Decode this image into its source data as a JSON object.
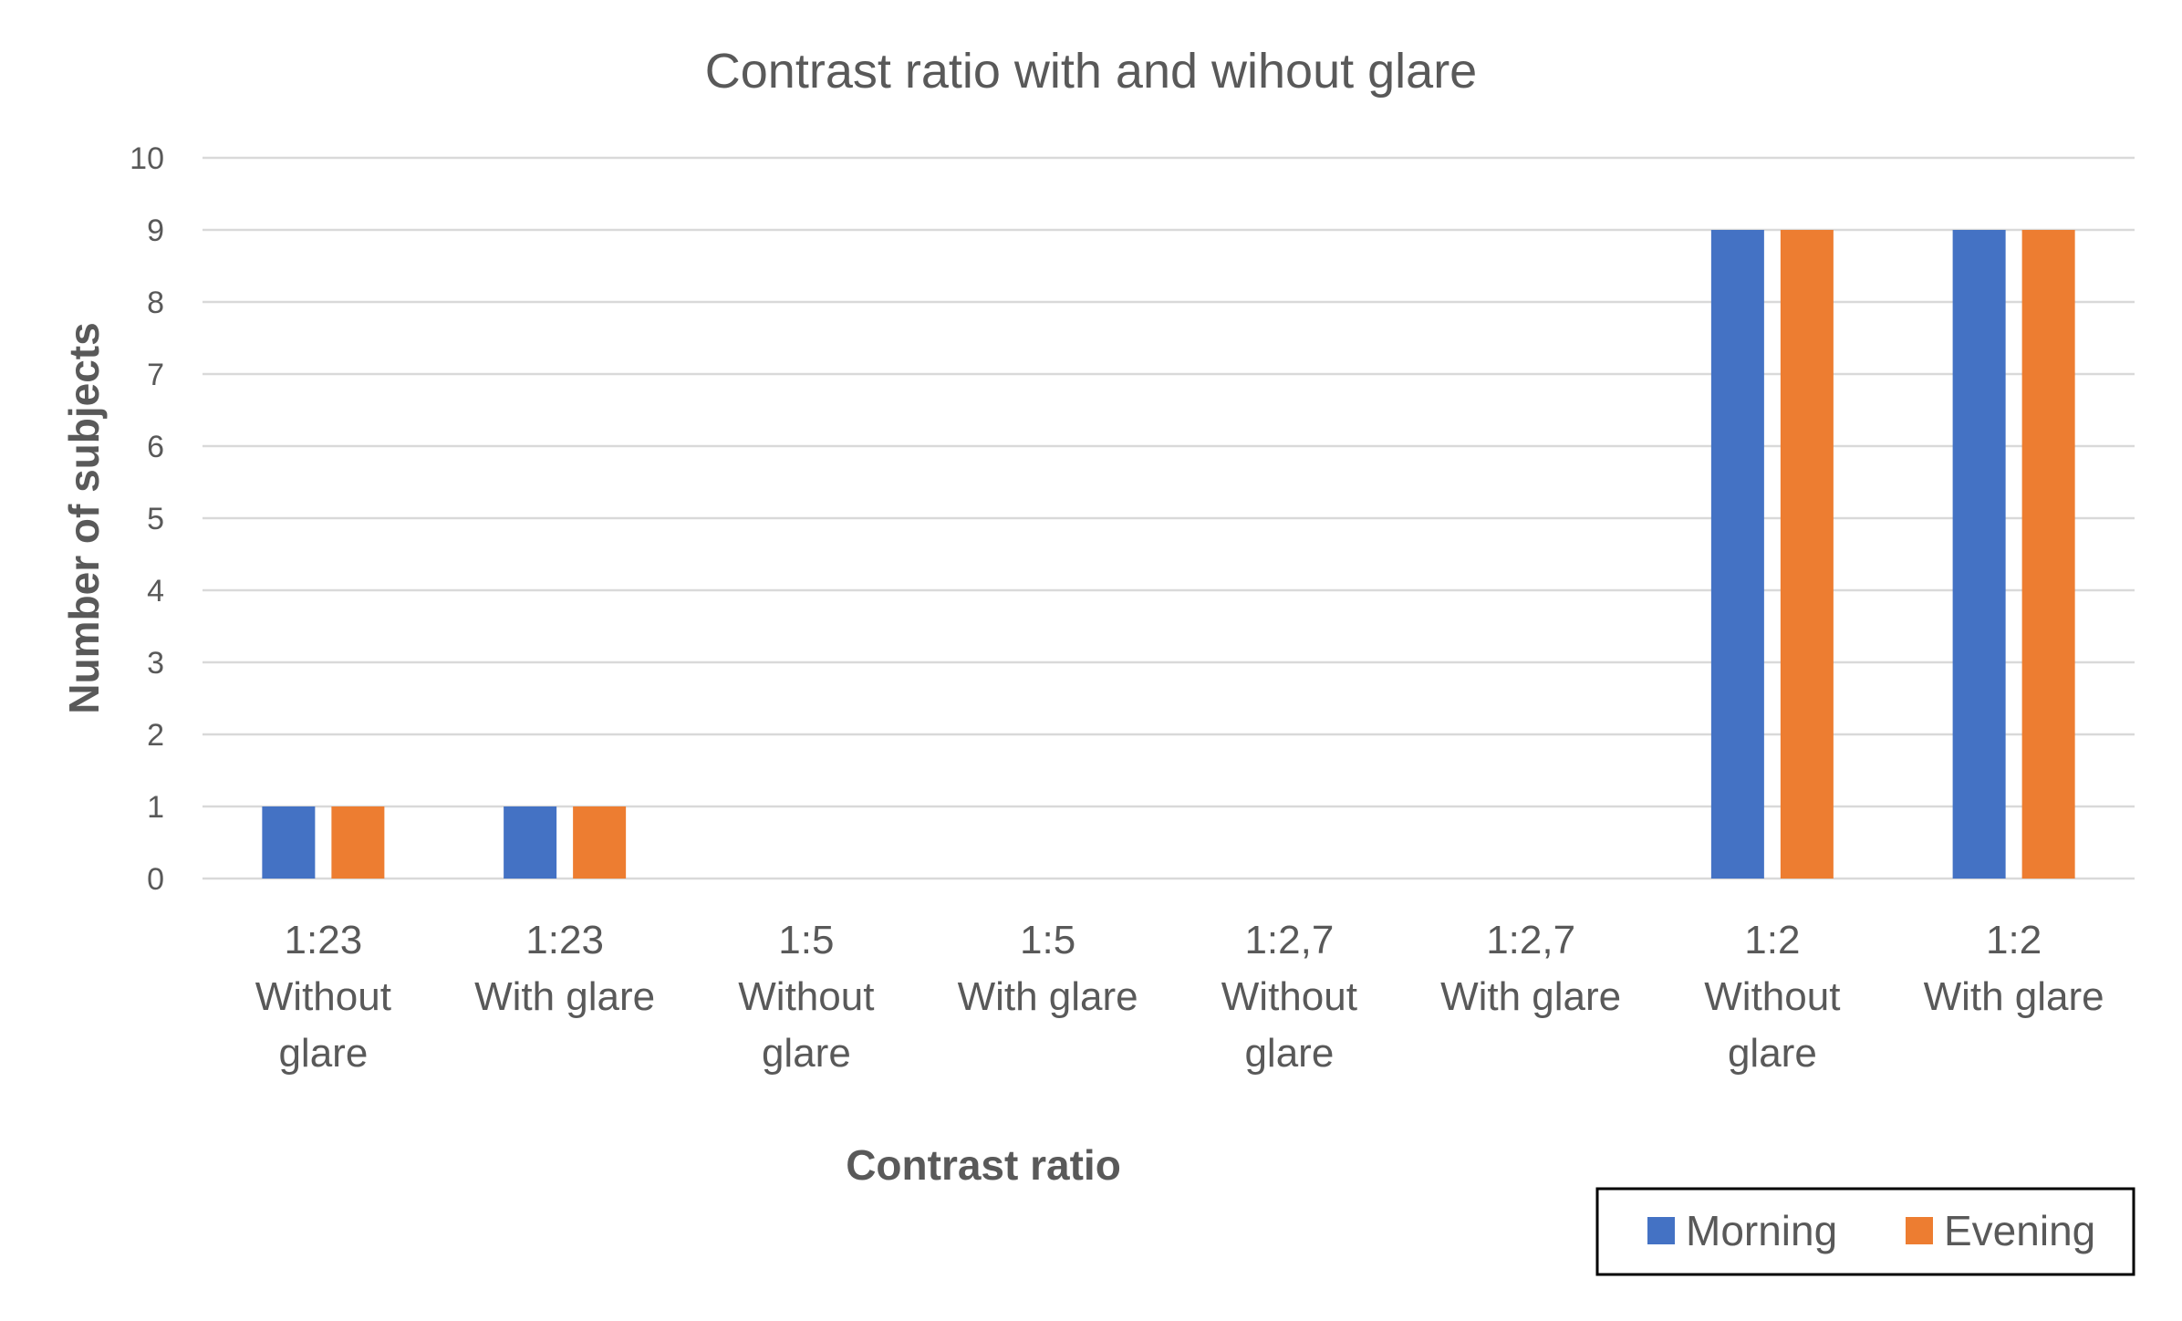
{
  "chart_data": {
    "type": "bar",
    "title": "Contrast ratio with and wihout glare",
    "xlabel": "Contrast ratio",
    "ylabel": "Number of subjects",
    "ylim": [
      0,
      10
    ],
    "yticks": [
      "0",
      "1",
      "2",
      "3",
      "4",
      "5",
      "6",
      "7",
      "8",
      "9",
      "10"
    ],
    "grid": true,
    "legend_position": "bottom-right",
    "categories": [
      [
        "1:23",
        "Without",
        "glare"
      ],
      [
        "1:23",
        "With glare"
      ],
      [
        "1:5",
        "Without",
        "glare"
      ],
      [
        "1:5",
        "With glare"
      ],
      [
        "1:2,7",
        "Without",
        "glare"
      ],
      [
        "1:2,7",
        "With glare"
      ],
      [
        "1:2",
        "Without",
        "glare"
      ],
      [
        "1:2",
        "With glare"
      ]
    ],
    "series": [
      {
        "name": "Morning",
        "color": "#4472c4",
        "values": [
          1,
          1,
          0,
          0,
          0,
          0,
          9,
          9
        ]
      },
      {
        "name": "Evening",
        "color": "#ed7d31",
        "values": [
          1,
          1,
          0,
          0,
          0,
          0,
          9,
          9
        ]
      }
    ]
  }
}
